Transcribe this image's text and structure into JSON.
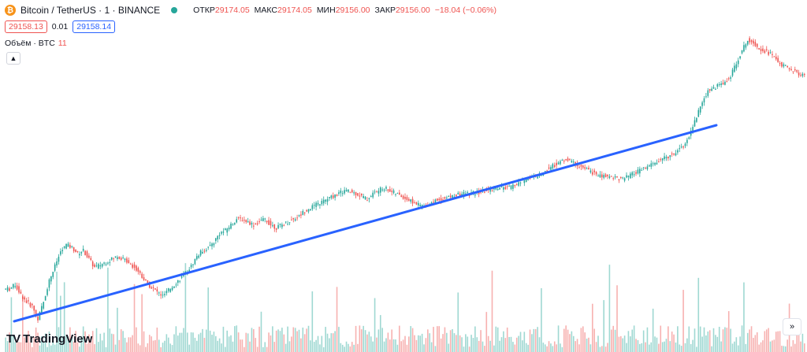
{
  "header": {
    "symbol_title": "Bitcoin / TetherUS · 1 · BINANCE",
    "ohlc": [
      {
        "label": "ОТКР",
        "value": "29174.05"
      },
      {
        "label": "МАКС",
        "value": "29174.05"
      },
      {
        "label": "МИН",
        "value": "29156.00"
      },
      {
        "label": "ЗАКР",
        "value": "29156.00"
      }
    ],
    "change": "−18.04 (−0.06%)"
  },
  "prices": {
    "sell": "29158.13",
    "spread": "0.01",
    "buy": "29158.14"
  },
  "volume": {
    "label": "Объём · BTC",
    "value": "11"
  },
  "collapse_icon": "chevron-up-icon",
  "logo": {
    "mark": "TV",
    "text": "TradingView"
  },
  "scroll_icon": "double-chevron-right-icon",
  "colors": {
    "up": "#26a69a",
    "down": "#ef5350",
    "trendline": "#2962ff",
    "vol_up": "#9fd8d2",
    "vol_down": "#f7b1b0"
  },
  "chart_data": {
    "type": "candlestick",
    "closes": [
      39,
      42,
      35,
      30,
      27,
      18,
      30,
      45,
      55,
      65,
      70,
      68,
      64,
      66,
      60,
      54,
      56,
      58,
      60,
      62,
      60,
      58,
      54,
      50,
      44,
      40,
      37,
      34,
      38,
      42,
      46,
      50,
      55,
      62,
      66,
      68,
      72,
      78,
      80,
      84,
      88,
      88,
      86,
      84,
      86,
      88,
      84,
      82,
      84,
      86,
      88,
      90,
      94,
      96,
      98,
      100,
      102,
      104,
      106,
      108,
      107,
      106,
      104,
      102,
      106,
      108,
      110,
      108,
      106,
      104,
      102,
      100,
      98,
      97,
      99,
      101,
      102,
      103,
      104,
      105,
      106,
      106,
      106,
      107,
      108,
      109,
      110,
      110,
      110,
      112,
      114,
      116,
      118,
      118,
      120,
      124,
      126,
      128,
      130,
      128,
      126,
      124,
      122,
      120,
      118,
      118,
      118,
      117,
      116,
      118,
      120,
      122,
      124,
      126,
      128,
      130,
      132,
      134,
      138,
      140,
      150,
      160,
      170,
      178,
      180,
      182,
      184,
      188,
      198,
      206,
      214,
      212,
      208,
      206,
      204,
      200,
      196,
      194,
      192,
      190,
      188
    ]
  }
}
